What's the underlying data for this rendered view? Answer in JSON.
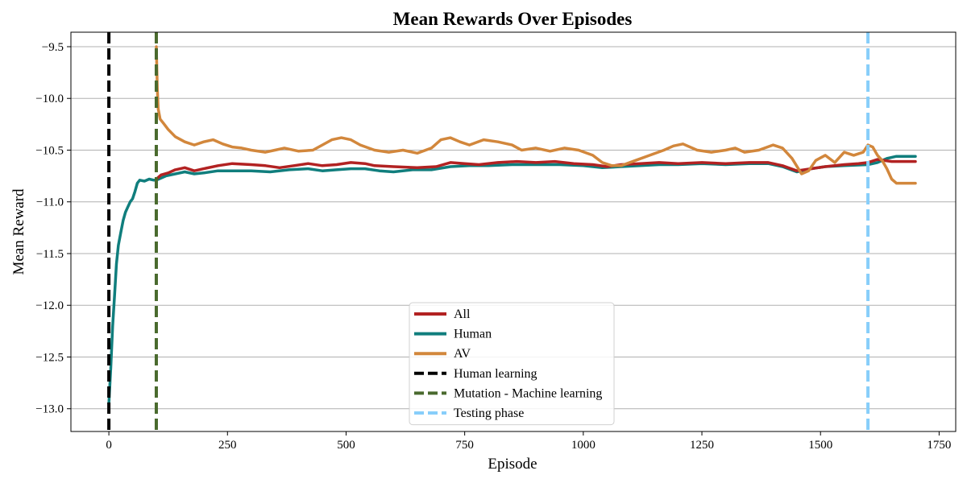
{
  "chart_data": {
    "type": "line",
    "title": "Mean Rewards Over Episodes",
    "xlabel": "Episode",
    "ylabel": "Mean Reward",
    "xlim": [
      -80,
      1785
    ],
    "ylim": [
      -13.22,
      -9.36
    ],
    "x_ticks": [
      0,
      250,
      500,
      750,
      1000,
      1250,
      1500,
      1750
    ],
    "y_ticks": [
      -9.5,
      -10.0,
      -10.5,
      -11.0,
      -11.5,
      -12.0,
      -12.5,
      -13.0
    ],
    "x_tick_labels": [
      "0",
      "250",
      "500",
      "750",
      "1000",
      "1250",
      "1500",
      "1750"
    ],
    "y_tick_labels": [
      "−9.5",
      "−10.0",
      "−10.5",
      "−11.0",
      "−11.5",
      "−12.0",
      "−12.5",
      "−13.0"
    ],
    "grid": "horizontal",
    "legend_position": "lower center",
    "series": [
      {
        "name": "All",
        "color": "#b22222",
        "points": [
          [
            100,
            -10.78
          ],
          [
            110,
            -10.74
          ],
          [
            125,
            -10.72
          ],
          [
            140,
            -10.69
          ],
          [
            160,
            -10.67
          ],
          [
            180,
            -10.7
          ],
          [
            200,
            -10.68
          ],
          [
            230,
            -10.65
          ],
          [
            260,
            -10.63
          ],
          [
            300,
            -10.64
          ],
          [
            330,
            -10.65
          ],
          [
            360,
            -10.67
          ],
          [
            390,
            -10.65
          ],
          [
            420,
            -10.63
          ],
          [
            450,
            -10.65
          ],
          [
            480,
            -10.64
          ],
          [
            510,
            -10.62
          ],
          [
            540,
            -10.63
          ],
          [
            560,
            -10.65
          ],
          [
            600,
            -10.66
          ],
          [
            650,
            -10.67
          ],
          [
            690,
            -10.66
          ],
          [
            720,
            -10.62
          ],
          [
            750,
            -10.63
          ],
          [
            780,
            -10.64
          ],
          [
            820,
            -10.62
          ],
          [
            860,
            -10.61
          ],
          [
            900,
            -10.62
          ],
          [
            940,
            -10.61
          ],
          [
            980,
            -10.63
          ],
          [
            1020,
            -10.64
          ],
          [
            1050,
            -10.66
          ],
          [
            1080,
            -10.64
          ],
          [
            1120,
            -10.63
          ],
          [
            1160,
            -10.62
          ],
          [
            1200,
            -10.63
          ],
          [
            1250,
            -10.62
          ],
          [
            1300,
            -10.63
          ],
          [
            1350,
            -10.62
          ],
          [
            1390,
            -10.62
          ],
          [
            1420,
            -10.65
          ],
          [
            1450,
            -10.7
          ],
          [
            1480,
            -10.68
          ],
          [
            1510,
            -10.66
          ],
          [
            1550,
            -10.64
          ],
          [
            1580,
            -10.63
          ],
          [
            1600,
            -10.62
          ],
          [
            1620,
            -10.59
          ],
          [
            1650,
            -10.61
          ],
          [
            1700,
            -10.61
          ]
        ]
      },
      {
        "name": "Human",
        "color": "#107e7d",
        "points": [
          [
            0,
            -12.95
          ],
          [
            4,
            -12.6
          ],
          [
            8,
            -12.2
          ],
          [
            12,
            -11.9
          ],
          [
            16,
            -11.6
          ],
          [
            20,
            -11.42
          ],
          [
            25,
            -11.3
          ],
          [
            30,
            -11.18
          ],
          [
            35,
            -11.1
          ],
          [
            40,
            -11.05
          ],
          [
            45,
            -11.0
          ],
          [
            50,
            -10.97
          ],
          [
            55,
            -10.9
          ],
          [
            60,
            -10.82
          ],
          [
            65,
            -10.79
          ],
          [
            75,
            -10.8
          ],
          [
            85,
            -10.78
          ],
          [
            95,
            -10.79
          ],
          [
            100,
            -10.79
          ],
          [
            120,
            -10.75
          ],
          [
            140,
            -10.73
          ],
          [
            160,
            -10.71
          ],
          [
            180,
            -10.73
          ],
          [
            200,
            -10.72
          ],
          [
            230,
            -10.7
          ],
          [
            260,
            -10.7
          ],
          [
            300,
            -10.7
          ],
          [
            340,
            -10.71
          ],
          [
            380,
            -10.69
          ],
          [
            420,
            -10.68
          ],
          [
            450,
            -10.7
          ],
          [
            480,
            -10.69
          ],
          [
            510,
            -10.68
          ],
          [
            540,
            -10.68
          ],
          [
            570,
            -10.7
          ],
          [
            600,
            -10.71
          ],
          [
            640,
            -10.69
          ],
          [
            680,
            -10.69
          ],
          [
            720,
            -10.66
          ],
          [
            760,
            -10.65
          ],
          [
            800,
            -10.65
          ],
          [
            850,
            -10.64
          ],
          [
            900,
            -10.64
          ],
          [
            950,
            -10.64
          ],
          [
            1000,
            -10.65
          ],
          [
            1040,
            -10.67
          ],
          [
            1080,
            -10.66
          ],
          [
            1120,
            -10.65
          ],
          [
            1160,
            -10.64
          ],
          [
            1200,
            -10.64
          ],
          [
            1250,
            -10.63
          ],
          [
            1300,
            -10.64
          ],
          [
            1350,
            -10.63
          ],
          [
            1390,
            -10.63
          ],
          [
            1420,
            -10.66
          ],
          [
            1450,
            -10.71
          ],
          [
            1480,
            -10.68
          ],
          [
            1510,
            -10.66
          ],
          [
            1550,
            -10.65
          ],
          [
            1600,
            -10.64
          ],
          [
            1620,
            -10.62
          ],
          [
            1640,
            -10.58
          ],
          [
            1660,
            -10.56
          ],
          [
            1700,
            -10.56
          ]
        ]
      },
      {
        "name": "AV",
        "color": "#d2873c",
        "points": [
          [
            100,
            -9.5
          ],
          [
            102,
            -9.9
          ],
          [
            104,
            -10.1
          ],
          [
            108,
            -10.2
          ],
          [
            115,
            -10.24
          ],
          [
            125,
            -10.3
          ],
          [
            140,
            -10.37
          ],
          [
            160,
            -10.42
          ],
          [
            180,
            -10.45
          ],
          [
            200,
            -10.42
          ],
          [
            220,
            -10.4
          ],
          [
            240,
            -10.44
          ],
          [
            260,
            -10.47
          ],
          [
            280,
            -10.48
          ],
          [
            300,
            -10.5
          ],
          [
            330,
            -10.52
          ],
          [
            350,
            -10.5
          ],
          [
            370,
            -10.48
          ],
          [
            400,
            -10.51
          ],
          [
            430,
            -10.5
          ],
          [
            450,
            -10.45
          ],
          [
            470,
            -10.4
          ],
          [
            490,
            -10.38
          ],
          [
            510,
            -10.4
          ],
          [
            530,
            -10.45
          ],
          [
            560,
            -10.5
          ],
          [
            590,
            -10.52
          ],
          [
            620,
            -10.5
          ],
          [
            650,
            -10.53
          ],
          [
            680,
            -10.48
          ],
          [
            700,
            -10.4
          ],
          [
            720,
            -10.38
          ],
          [
            740,
            -10.42
          ],
          [
            760,
            -10.45
          ],
          [
            790,
            -10.4
          ],
          [
            820,
            -10.42
          ],
          [
            850,
            -10.45
          ],
          [
            870,
            -10.5
          ],
          [
            900,
            -10.48
          ],
          [
            930,
            -10.51
          ],
          [
            960,
            -10.48
          ],
          [
            990,
            -10.5
          ],
          [
            1020,
            -10.55
          ],
          [
            1040,
            -10.62
          ],
          [
            1060,
            -10.65
          ],
          [
            1080,
            -10.65
          ],
          [
            1110,
            -10.6
          ],
          [
            1140,
            -10.55
          ],
          [
            1170,
            -10.5
          ],
          [
            1190,
            -10.46
          ],
          [
            1210,
            -10.44
          ],
          [
            1240,
            -10.5
          ],
          [
            1270,
            -10.52
          ],
          [
            1300,
            -10.5
          ],
          [
            1320,
            -10.48
          ],
          [
            1340,
            -10.52
          ],
          [
            1370,
            -10.5
          ],
          [
            1400,
            -10.45
          ],
          [
            1420,
            -10.48
          ],
          [
            1440,
            -10.58
          ],
          [
            1460,
            -10.73
          ],
          [
            1475,
            -10.7
          ],
          [
            1490,
            -10.6
          ],
          [
            1510,
            -10.55
          ],
          [
            1530,
            -10.62
          ],
          [
            1550,
            -10.52
          ],
          [
            1570,
            -10.55
          ],
          [
            1590,
            -10.52
          ],
          [
            1600,
            -10.45
          ],
          [
            1610,
            -10.47
          ],
          [
            1620,
            -10.55
          ],
          [
            1630,
            -10.6
          ],
          [
            1640,
            -10.68
          ],
          [
            1650,
            -10.78
          ],
          [
            1660,
            -10.82
          ],
          [
            1700,
            -10.82
          ]
        ]
      }
    ],
    "vlines": [
      {
        "name": "Human learning",
        "x": 0,
        "color": "#000000"
      },
      {
        "name": "Mutation - Machine learning",
        "x": 100,
        "color": "#4a6a2e"
      },
      {
        "name": "Testing phase",
        "x": 1600,
        "color": "#87cefa"
      }
    ]
  }
}
